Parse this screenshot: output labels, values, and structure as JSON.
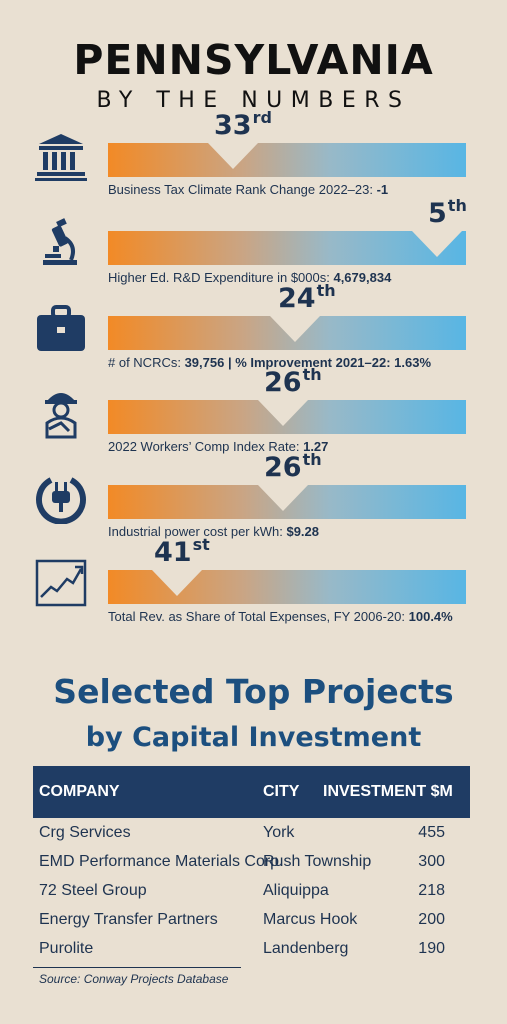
{
  "header": {
    "title": "PENNSYLVANIA",
    "subtitle": "BY THE NUMBERS"
  },
  "metrics": [
    {
      "icon": "bank-icon",
      "rank": "33",
      "suffix": "rd",
      "caption_prefix": "Business Tax Climate Rank Change 2022–23: ",
      "caption_value": "-1",
      "rank_fraction": 0.33
    },
    {
      "icon": "microscope-icon",
      "rank": "5",
      "suffix": "th",
      "caption_prefix": "Higher Ed. R&D Expenditure in $000s: ",
      "caption_value": "4,679,834",
      "rank_fraction": 0.94
    },
    {
      "icon": "briefcase-icon",
      "rank": "24",
      "suffix": "th",
      "caption_prefix": "# of NCRCs: ",
      "caption_value": "39,756 | % Improvement 2021–22: 1.63%",
      "rank_fraction": 0.54
    },
    {
      "icon": "worker-icon",
      "rank": "26",
      "suffix": "th",
      "caption_prefix": "2022 Workers’ Comp Index Rate: ",
      "caption_value": "1.27",
      "rank_fraction": 0.5
    },
    {
      "icon": "power-plug-icon",
      "rank": "26",
      "suffix": "th",
      "caption_prefix": "Industrial power cost per kWh: ",
      "caption_value": "$9.28",
      "rank_fraction": 0.5
    },
    {
      "icon": "trend-chart-icon",
      "rank": "41",
      "suffix": "st",
      "caption_prefix": "Total Rev. as Share of Total Expenses, FY 2006-20: ",
      "caption_value": "100.4%",
      "rank_fraction": 0.2
    }
  ],
  "projects": {
    "heading_line1": "Selected Top Projects",
    "heading_line2": "by Capital Investment",
    "columns": [
      "COMPANY",
      "CITY",
      "INVESTMENT $M"
    ],
    "rows": [
      {
        "company": "Crg Services",
        "city": "York",
        "investment": "455"
      },
      {
        "company": "EMD Performance Materials Corp.",
        "city": "Rush Township",
        "investment": "300"
      },
      {
        "company": "72 Steel Group",
        "city": "Aliquippa",
        "investment": "218"
      },
      {
        "company": "Energy Transfer Partners",
        "city": "Marcus Hook",
        "investment": "200"
      },
      {
        "company": "Purolite",
        "city": "Landenberg",
        "investment": "190"
      }
    ],
    "source": "Source: Conway Projects Database"
  },
  "colors": {
    "navy": "#1f3c64",
    "heading_blue": "#1c4f7f",
    "orange": "#f28a26",
    "sky": "#58b6e4",
    "background": "#e9e0d2"
  }
}
